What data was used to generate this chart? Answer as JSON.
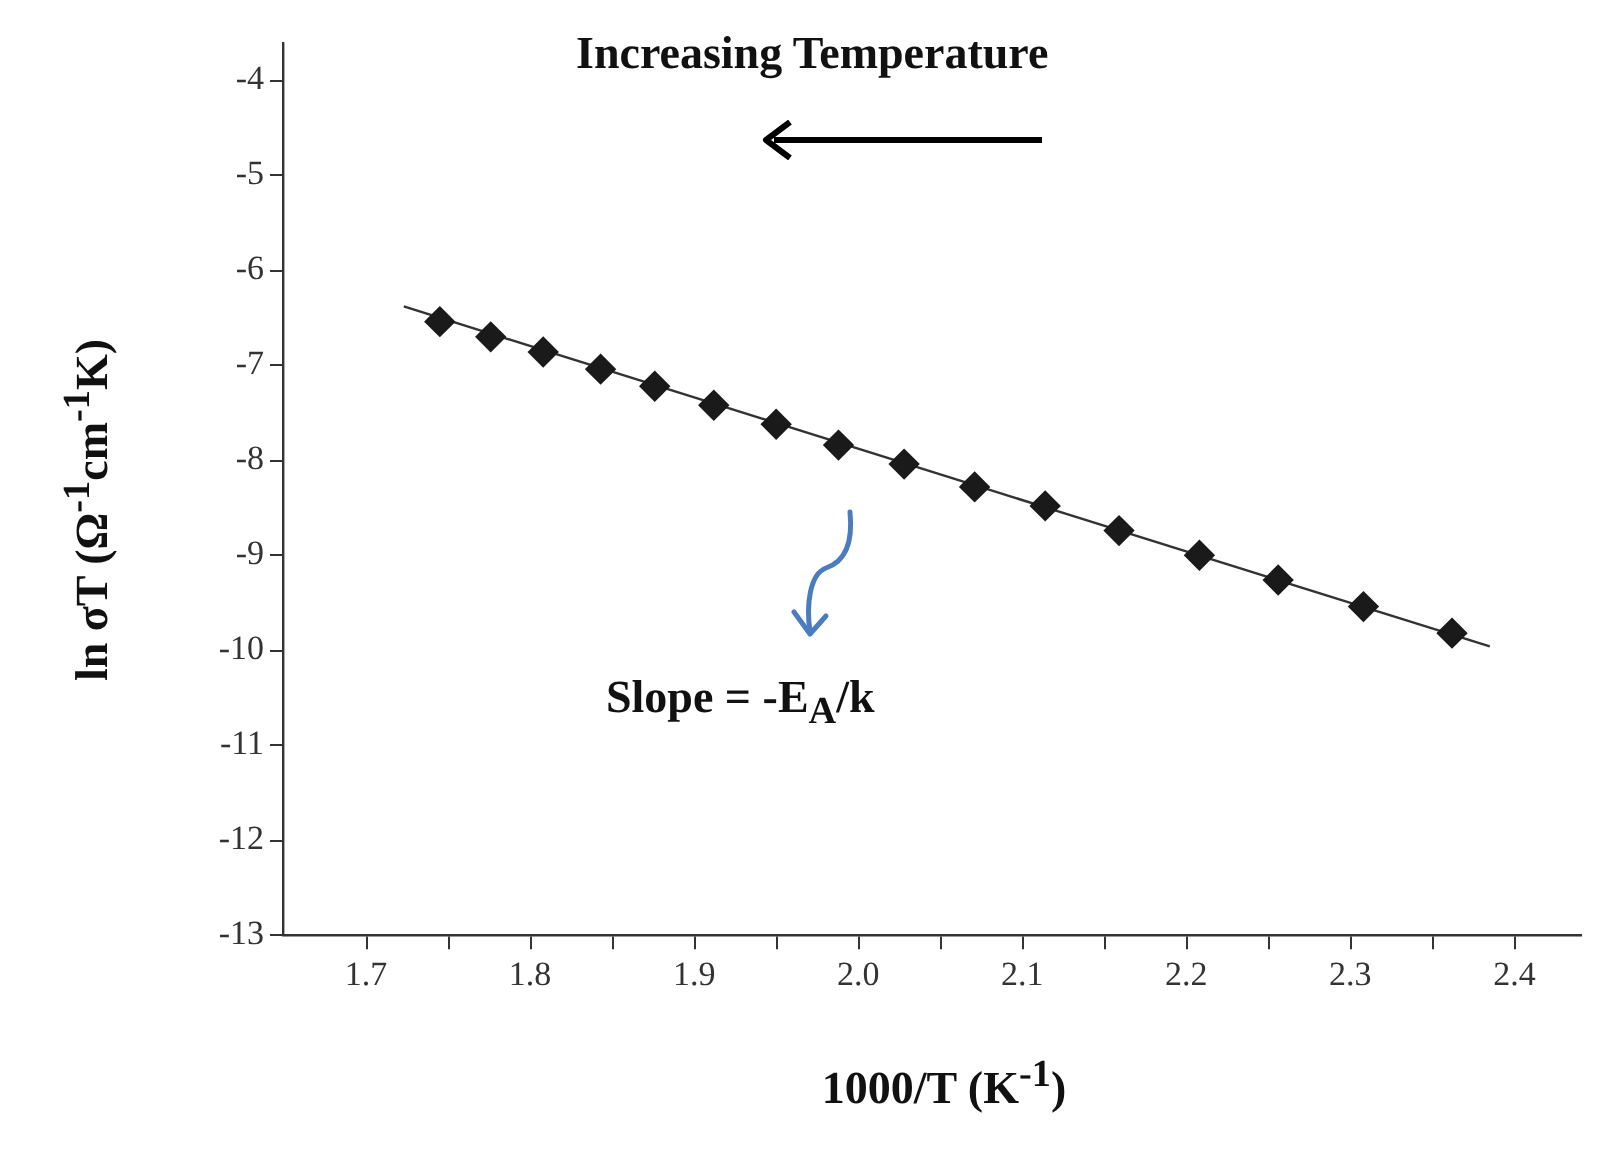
{
  "chart_data": {
    "type": "scatter",
    "xlabel": "1000/T (K$^{-1}$)",
    "ylabel": "ln σT (Ω$^{-1}$cm$^{-1}$K)",
    "annotations": [
      "Increasing Temperature",
      "Slope = -E$_{A}$/k"
    ],
    "series": [
      {
        "type": "scatter",
        "color": "#1a1a1a",
        "marker": "diamond",
        "x": [
          1.745,
          1.776,
          1.808,
          1.843,
          1.876,
          1.912,
          1.95,
          1.988,
          2.028,
          2.071,
          2.114,
          2.159,
          2.208,
          2.256,
          2.308,
          2.362
        ],
        "values": [
          -6.54,
          -6.7,
          -6.86,
          -7.04,
          -7.22,
          -7.42,
          -7.62,
          -7.84,
          -8.04,
          -8.28,
          -8.48,
          -8.74,
          -9.0,
          -9.26,
          -9.54,
          -9.82
        ]
      },
      {
        "type": "line",
        "color": "#333333",
        "marker": "none",
        "line_style": "solid",
        "x": [
          1.723,
          2.385
        ],
        "values": [
          -6.38,
          -9.96
        ]
      }
    ],
    "xlim": [
      1.65,
      2.44
    ],
    "xticks": [
      1.7,
      {
        "value": 1.75,
        "label": null
      },
      1.8,
      {
        "value": 1.85,
        "label": null
      },
      1.9,
      {
        "value": 1.95,
        "label": null
      },
      {
        "value": 2.0,
        "label": "2.0"
      },
      {
        "value": 2.05,
        "label": null
      },
      2.1,
      {
        "value": 2.15,
        "label": null
      },
      2.2,
      {
        "value": 2.25,
        "label": null
      },
      2.3,
      {
        "value": 2.35,
        "label": null
      },
      2.4
    ],
    "ylim": [
      -13,
      -3.6
    ],
    "yticks": [
      -13,
      -12,
      -11,
      -10,
      -9,
      -8,
      -7,
      -6,
      -5,
      -4
    ],
    "grid": false,
    "legend": false
  }
}
